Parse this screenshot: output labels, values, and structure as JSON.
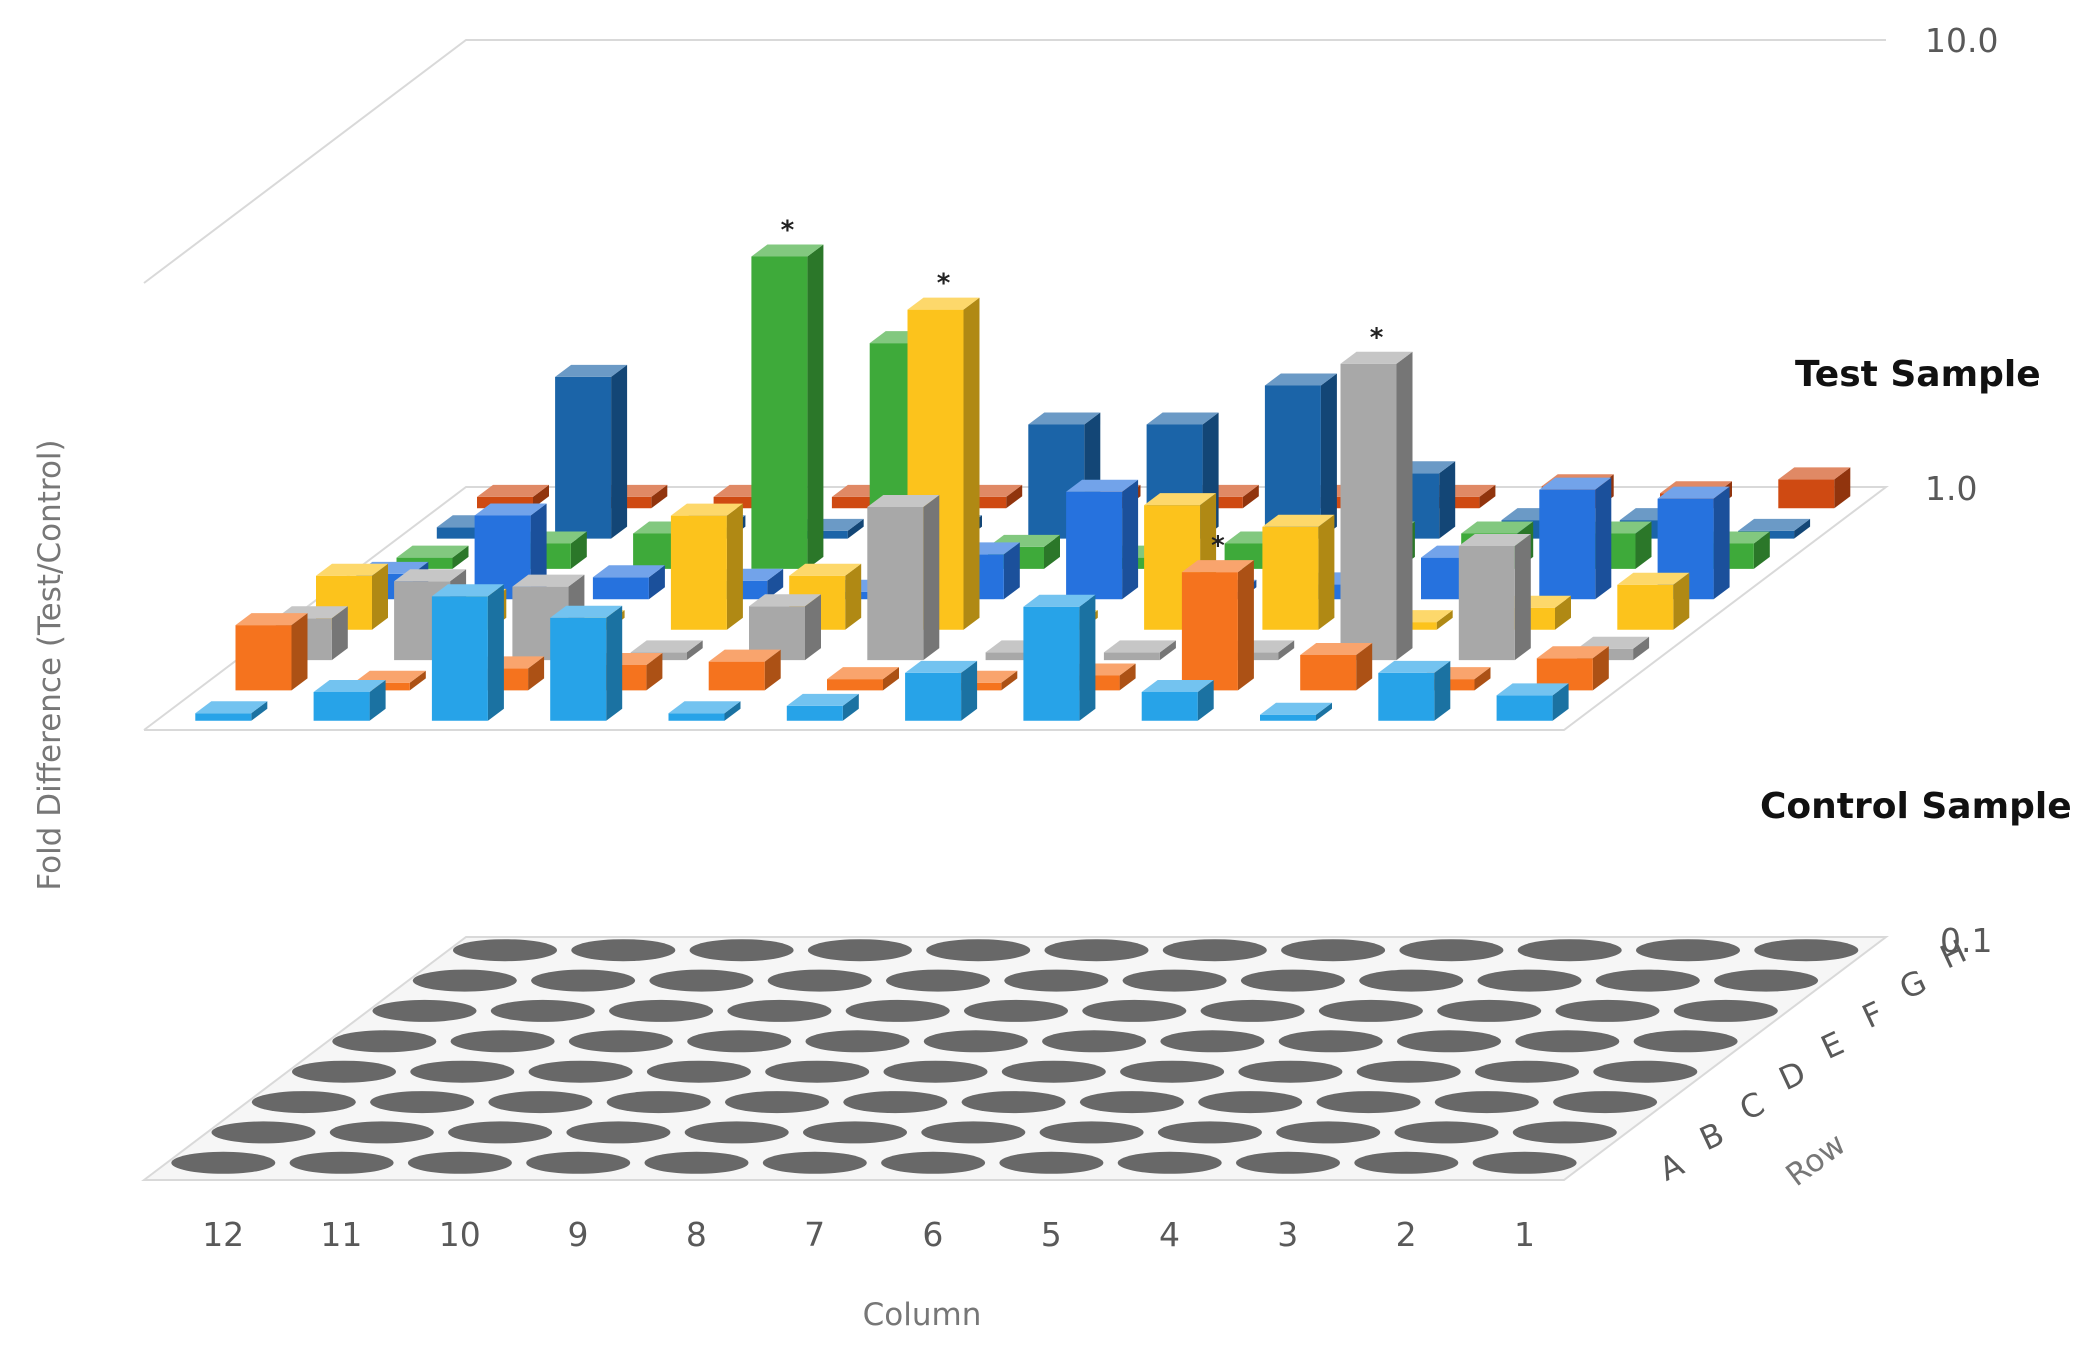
{
  "chart_data": {
    "type": "bar",
    "subtype": "3d-column",
    "title": "",
    "ylabel": "Fold Difference (Test/Control)",
    "xlabel": "Column",
    "zlabel": "Row",
    "y_scale": "log",
    "ylim": [
      0.1,
      10.0
    ],
    "y_ticks": [
      "10.0",
      "1.0",
      "0.1"
    ],
    "columns": [
      "12",
      "11",
      "10",
      "9",
      "8",
      "7",
      "6",
      "5",
      "4",
      "3",
      "2",
      "1"
    ],
    "rows": [
      "A",
      "B",
      "C",
      "D",
      "E",
      "F",
      "G",
      "H"
    ],
    "series_colors": {
      "A": "#27a3e8",
      "B": "#f5731e",
      "C": "#a8a8a8",
      "D": "#fcc31c",
      "E": "#2672de",
      "F": "#3eaa3a",
      "G": "#1b64a8",
      "H": "#cf4a12"
    },
    "series": [
      {
        "row": "A",
        "values": [
          0.52,
          0.58,
          0.95,
          0.85,
          0.52,
          0.54,
          0.64,
          0.9,
          0.58,
          0.51,
          0.64,
          0.57
        ]
      },
      {
        "row": "B",
        "values": [
          0.7,
          0.52,
          0.56,
          0.57,
          0.58,
          0.53,
          0.52,
          0.54,
          0.92,
          0.6,
          0.53,
          0.59
        ]
      },
      {
        "row": "C",
        "values": [
          0.62,
          0.75,
          0.73,
          0.52,
          0.66,
          1.1,
          0.52,
          0.52,
          0.52,
          2.3,
          0.9,
          0.53
        ]
      },
      {
        "row": "D",
        "values": [
          0.66,
          0.58,
          0.52,
          0.9,
          0.66,
          2.6,
          0.52,
          0.95,
          0.85,
          0.52,
          0.56,
          0.63
        ]
      },
      {
        "row": "E",
        "values": [
          0.57,
          0.77,
          0.56,
          0.55,
          0.52,
          0.63,
          0.87,
          0.52,
          0.54,
          0.62,
          0.88,
          0.84
        ]
      },
      {
        "row": "F",
        "values": [
          0.53,
          0.57,
          0.6,
          2.5,
          1.6,
          0.56,
          0.53,
          0.57,
          0.6,
          0.6,
          0.6,
          0.57
        ]
      },
      {
        "row": "G",
        "values": [
          0.53,
          1.15,
          0.53,
          0.52,
          0.53,
          0.9,
          0.9,
          1.1,
          0.7,
          0.55,
          0.55,
          0.52
        ]
      },
      {
        "row": "H",
        "values": [
          0.53,
          0.53,
          0.53,
          0.53,
          0.53,
          0.53,
          0.53,
          0.53,
          0.53,
          0.56,
          0.54,
          0.58
        ]
      }
    ],
    "significant_marks": [
      {
        "row": "F",
        "column": "9",
        "label": "*"
      },
      {
        "row": "D",
        "column": "7",
        "label": "*"
      },
      {
        "row": "B",
        "column": "4",
        "label": "*"
      },
      {
        "row": "C",
        "column": "3",
        "label": "*"
      }
    ],
    "panel_labels": {
      "test": "Test Sample",
      "control": "Control Sample"
    },
    "control_plate": {
      "rows": 8,
      "columns": 12
    }
  }
}
